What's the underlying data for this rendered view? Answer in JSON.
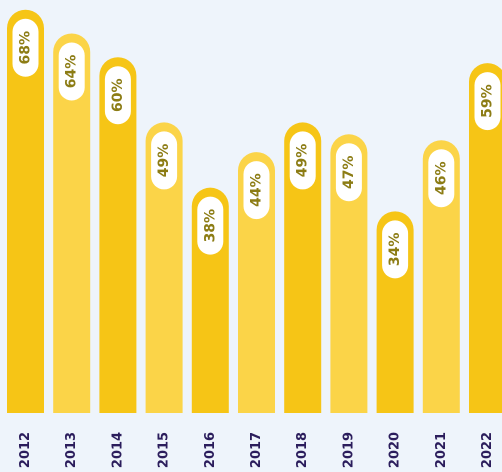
{
  "chart_data": {
    "type": "bar",
    "categories": [
      "2012",
      "2013",
      "2014",
      "2015",
      "2016",
      "2017",
      "2018",
      "2019",
      "2020",
      "2021",
      "2022"
    ],
    "values": [
      68,
      64,
      60,
      49,
      38,
      44,
      49,
      47,
      34,
      46,
      59
    ],
    "value_labels": [
      "68%",
      "64%",
      "60%",
      "49%",
      "38%",
      "44%",
      "49%",
      "47%",
      "34%",
      "46%",
      "59%"
    ],
    "colors": [
      "#f6c516",
      "#fbd448",
      "#f6c516",
      "#fbd448",
      "#f6c516",
      "#fbd448",
      "#f6c516",
      "#fbd448",
      "#f6c516",
      "#fbd448",
      "#f6c516"
    ]
  }
}
